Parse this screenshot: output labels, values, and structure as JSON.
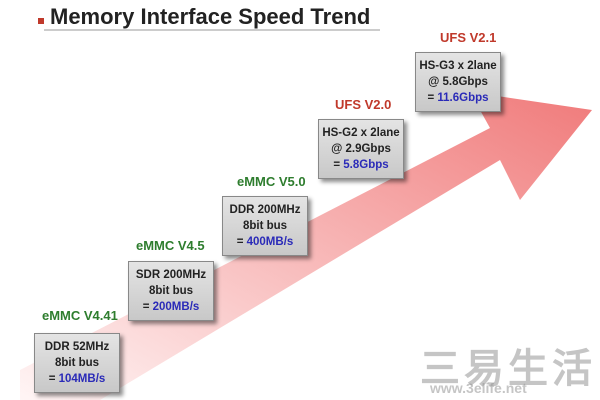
{
  "title": "Memory Interface Speed Trend",
  "steps": [
    {
      "version": "eMMC V4.41",
      "lines": [
        "DDR 52MHz",
        "8bit bus"
      ],
      "prefix": "=",
      "speed": "104MB/s"
    },
    {
      "version": "eMMC V4.5",
      "lines": [
        "SDR 200MHz",
        "8bit bus"
      ],
      "prefix": "=",
      "speed": "200MB/s"
    },
    {
      "version": "eMMC V5.0",
      "lines": [
        "DDR 200MHz",
        "8bit bus"
      ],
      "prefix": "=",
      "speed": "400MB/s"
    },
    {
      "version": "UFS V2.0",
      "lines": [
        "HS-G2 x 2lane",
        "@ 2.9Gbps"
      ],
      "prefix": "=",
      "speed": "5.8Gbps"
    },
    {
      "version": "UFS V2.1",
      "lines": [
        "HS-G3 x 2lane",
        "@ 5.8Gbps"
      ],
      "prefix": "=",
      "speed": "11.6Gbps"
    }
  ],
  "watermark": {
    "name": "三易生活",
    "url": "www.3elife.net"
  }
}
